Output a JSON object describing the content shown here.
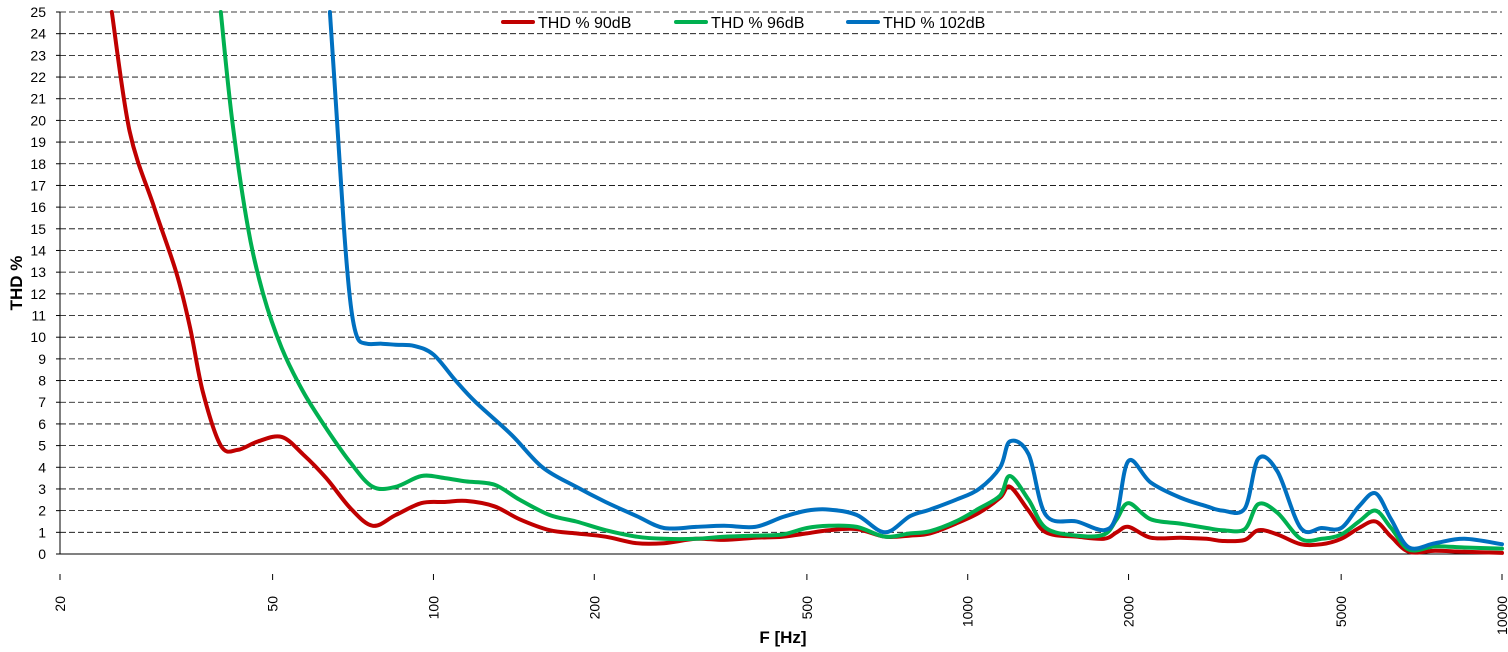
{
  "chart_data": {
    "type": "line",
    "xlabel": "F [Hz]",
    "ylabel": "THD %",
    "xscale": "log",
    "xlim": [
      20,
      10000
    ],
    "ylim": [
      0,
      25
    ],
    "grid": "horizontal dashed",
    "legend_position": "top-center",
    "x_ticks": [
      "20",
      "50",
      "100",
      "200",
      "500",
      "1000",
      "2000",
      "5000",
      "10000"
    ],
    "y_ticks": [
      "0",
      "1",
      "2",
      "3",
      "4",
      "5",
      "6",
      "7",
      "8",
      "9",
      "10",
      "11",
      "12",
      "13",
      "14",
      "15",
      "16",
      "17",
      "18",
      "19",
      "20",
      "21",
      "22",
      "23",
      "24",
      "25"
    ],
    "series": [
      {
        "name": "THD % 90dB",
        "color": "#c00000",
        "x": [
          25,
          27,
          30,
          33,
          35,
          37,
          40,
          43,
          47,
          52,
          57,
          63,
          70,
          77,
          85,
          95,
          105,
          115,
          130,
          145,
          165,
          185,
          210,
          240,
          270,
          310,
          350,
          400,
          450,
          500,
          550,
          620,
          700,
          780,
          850,
          950,
          1050,
          1150,
          1200,
          1300,
          1400,
          1600,
          1800,
          1900,
          2000,
          2200,
          2500,
          2800,
          3000,
          3300,
          3500,
          3800,
          4200,
          4600,
          5000,
          5400,
          5800,
          6200,
          6700,
          7500,
          8500,
          10000
        ],
        "y": [
          25,
          19.5,
          16,
          13,
          10.5,
          7.5,
          5,
          4.8,
          5.2,
          5.4,
          4.6,
          3.5,
          2.1,
          1.3,
          1.8,
          2.35,
          2.4,
          2.45,
          2.2,
          1.6,
          1.1,
          0.95,
          0.8,
          0.5,
          0.5,
          0.7,
          0.65,
          0.75,
          0.8,
          0.95,
          1.1,
          1.15,
          0.8,
          0.85,
          0.95,
          1.4,
          1.9,
          2.6,
          3.1,
          2.0,
          1.0,
          0.8,
          0.7,
          1.0,
          1.25,
          0.75,
          0.75,
          0.7,
          0.6,
          0.65,
          1.1,
          0.9,
          0.45,
          0.45,
          0.7,
          1.2,
          1.5,
          0.8,
          0.1,
          0.15,
          0.1,
          0.05
        ]
      },
      {
        "name": "THD % 96dB",
        "color": "#00b050",
        "x": [
          40,
          42,
          45,
          48,
          52,
          57,
          63,
          70,
          77,
          85,
          95,
          105,
          115,
          130,
          145,
          165,
          185,
          210,
          240,
          270,
          310,
          350,
          400,
          450,
          500,
          550,
          620,
          700,
          780,
          850,
          950,
          1050,
          1150,
          1200,
          1300,
          1400,
          1600,
          1800,
          1900,
          2000,
          2200,
          2500,
          2800,
          3000,
          3300,
          3500,
          3800,
          4200,
          4600,
          5000,
          5400,
          5800,
          6200,
          6700,
          7500,
          8500,
          10000
        ],
        "y": [
          25,
          20,
          15,
          12,
          9.5,
          7.5,
          5.8,
          4.2,
          3.1,
          3.1,
          3.6,
          3.5,
          3.35,
          3.2,
          2.5,
          1.8,
          1.5,
          1.1,
          0.8,
          0.7,
          0.7,
          0.8,
          0.85,
          0.9,
          1.2,
          1.3,
          1.25,
          0.8,
          0.95,
          1.05,
          1.5,
          2.1,
          2.7,
          3.6,
          2.5,
          1.2,
          0.85,
          0.9,
          1.6,
          2.35,
          1.6,
          1.4,
          1.2,
          1.1,
          1.15,
          2.3,
          1.9,
          0.7,
          0.7,
          0.9,
          1.5,
          2.0,
          1.2,
          0.2,
          0.35,
          0.3,
          0.25
        ]
      },
      {
        "name": "THD % 102dB",
        "color": "#0070c0",
        "x": [
          64,
          66,
          68,
          70,
          72,
          75,
          80,
          85,
          92,
          100,
          110,
          120,
          140,
          160,
          185,
          210,
          240,
          270,
          310,
          350,
          400,
          450,
          500,
          550,
          620,
          700,
          780,
          850,
          950,
          1050,
          1150,
          1200,
          1300,
          1400,
          1600,
          1800,
          1900,
          2000,
          2200,
          2500,
          2800,
          3000,
          3300,
          3500,
          3800,
          4200,
          4600,
          5000,
          5400,
          5800,
          6200,
          6700,
          7500,
          8500,
          10000
        ],
        "y": [
          25,
          20,
          15,
          11.5,
          10,
          9.7,
          9.7,
          9.65,
          9.6,
          9.2,
          8,
          7,
          5.5,
          4,
          3.1,
          2.4,
          1.75,
          1.2,
          1.25,
          1.3,
          1.25,
          1.7,
          2.0,
          2.05,
          1.8,
          1.0,
          1.75,
          2.05,
          2.5,
          3.0,
          4.0,
          5.2,
          4.6,
          1.8,
          1.5,
          1.1,
          1.8,
          4.3,
          3.3,
          2.6,
          2.2,
          2.0,
          2.1,
          4.4,
          3.8,
          1.2,
          1.2,
          1.2,
          2.2,
          2.8,
          1.6,
          0.3,
          0.5,
          0.7,
          0.45
        ]
      }
    ]
  }
}
